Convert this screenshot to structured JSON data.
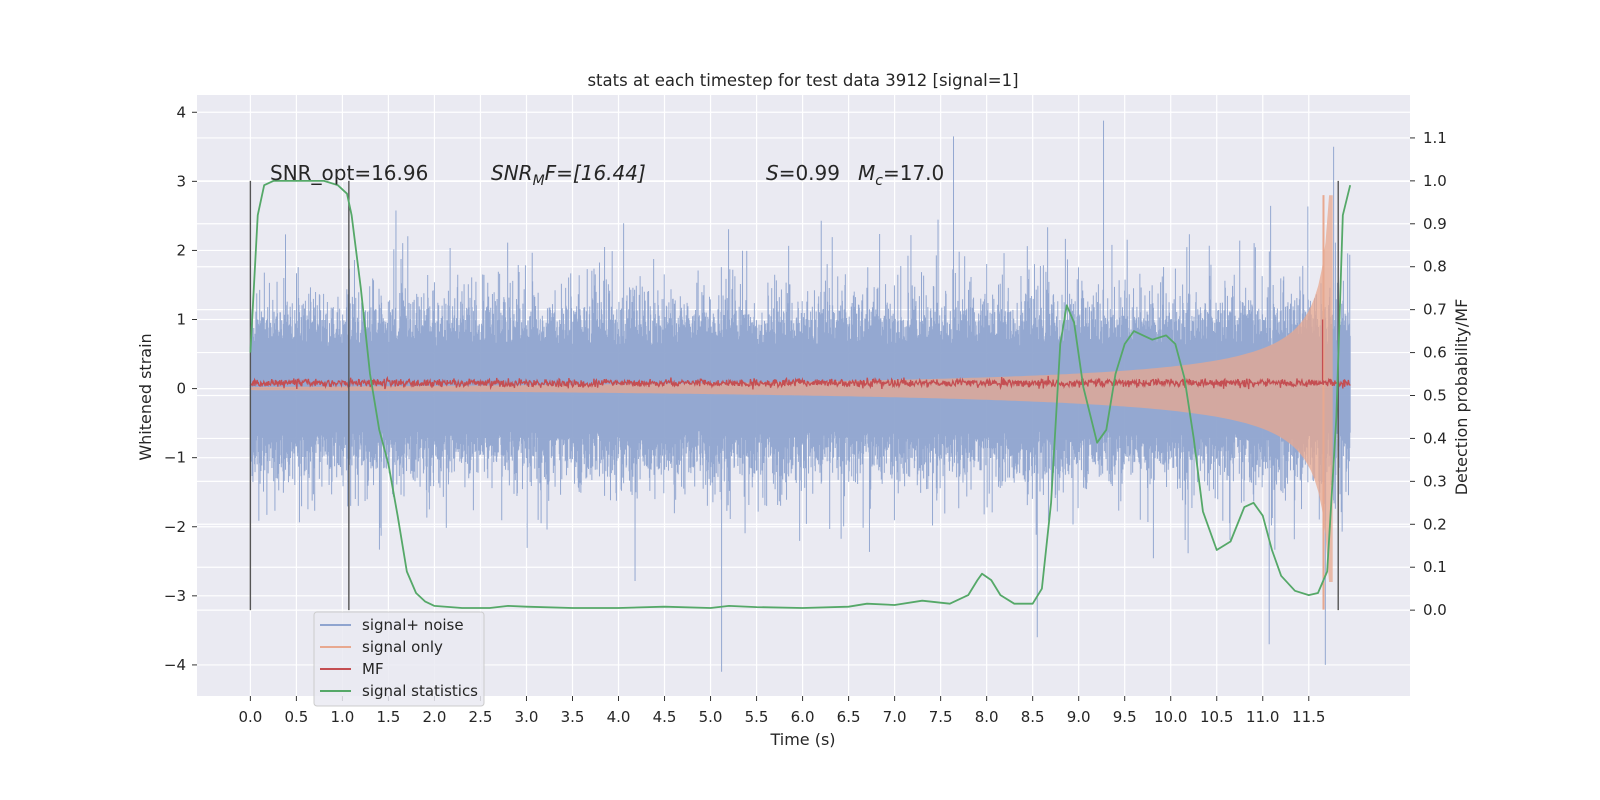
{
  "chart_data": {
    "type": "line",
    "title": "stats at each timestep for test data 3912 [signal=1]",
    "xlabel": "Time (s)",
    "ylabel": "Whitened strain",
    "ylabel_right": "Detection probability/MF",
    "xlim": [
      -0.58,
      12.6
    ],
    "ylim": [
      -4.45,
      4.25
    ],
    "ylim_right": [
      -0.2,
      1.2
    ],
    "grid": true,
    "legend_position": "lower-left",
    "x_ticks": [
      "0.0",
      "0.5",
      "1.0",
      "1.5",
      "2.0",
      "2.5",
      "3.0",
      "3.5",
      "4.0",
      "4.5",
      "5.0",
      "5.5",
      "6.0",
      "6.5",
      "7.0",
      "7.5",
      "8.0",
      "8.5",
      "9.0",
      "9.5",
      "10.0",
      "10.5",
      "11.0",
      "11.5"
    ],
    "y_ticks": [
      "4",
      "3",
      "2",
      "1",
      "0",
      "−1",
      "−2",
      "−3",
      "−4"
    ],
    "y_tick_values": [
      4,
      3,
      2,
      1,
      0,
      -1,
      -2,
      -3,
      -4
    ],
    "y_right_ticks": [
      "1.1",
      "1.0",
      "0.9",
      "0.8",
      "0.7",
      "0.6",
      "0.5",
      "0.4",
      "0.3",
      "0.2",
      "0.1",
      "0.0"
    ],
    "y_right_tick_values": [
      1.1,
      1.0,
      0.9,
      0.8,
      0.7,
      0.6,
      0.5,
      0.4,
      0.3,
      0.2,
      0.1,
      0.0
    ],
    "annotations": {
      "snr_opt": "SNR_opt=16.96",
      "snr_mf_label": "SNR",
      "snr_mf_sub": "M",
      "snr_mf_value": "F=[16.44]",
      "s_label": "S",
      "s_value": "=0.99",
      "mc_label": "M",
      "mc_sub": "c",
      "mc_value": "=17.0"
    },
    "vertical_markers": [
      0.0,
      1.07,
      11.82
    ],
    "series": [
      {
        "name": "signal+ noise",
        "color": "#8fa4cf",
        "axis": "left",
        "t_range": [
          0.0,
          11.95
        ],
        "typical_amplitude": 1.1,
        "peak_max": 3.88,
        "peak_min": -4.1
      },
      {
        "name": "signal only",
        "color": "#e8a88f",
        "axis": "left",
        "t_range": [
          0.0,
          11.78
        ],
        "envelope_start": 0.02,
        "envelope_end": 2.8
      },
      {
        "name": "MF",
        "color": "#c44e52",
        "axis": "left",
        "t_range": [
          0.0,
          11.95
        ],
        "mean": 0.08,
        "typical_amplitude": 0.07,
        "spike": [
          11.65,
          1.0
        ]
      },
      {
        "name": "signal statistics",
        "color": "#55a868",
        "axis": "right",
        "points": [
          [
            0.0,
            0.6
          ],
          [
            0.05,
            0.8
          ],
          [
            0.08,
            0.92
          ],
          [
            0.15,
            0.99
          ],
          [
            0.25,
            1.0
          ],
          [
            0.5,
            1.0
          ],
          [
            0.8,
            1.0
          ],
          [
            0.95,
            0.99
          ],
          [
            1.05,
            0.97
          ],
          [
            1.1,
            0.92
          ],
          [
            1.2,
            0.75
          ],
          [
            1.3,
            0.55
          ],
          [
            1.4,
            0.42
          ],
          [
            1.5,
            0.34
          ],
          [
            1.6,
            0.22
          ],
          [
            1.7,
            0.09
          ],
          [
            1.8,
            0.04
          ],
          [
            1.9,
            0.02
          ],
          [
            2.0,
            0.01
          ],
          [
            2.3,
            0.005
          ],
          [
            2.6,
            0.005
          ],
          [
            2.8,
            0.01
          ],
          [
            3.0,
            0.008
          ],
          [
            3.5,
            0.005
          ],
          [
            4.0,
            0.005
          ],
          [
            4.5,
            0.008
          ],
          [
            5.0,
            0.005
          ],
          [
            5.2,
            0.01
          ],
          [
            5.5,
            0.007
          ],
          [
            6.0,
            0.005
          ],
          [
            6.5,
            0.008
          ],
          [
            6.7,
            0.015
          ],
          [
            7.0,
            0.012
          ],
          [
            7.3,
            0.022
          ],
          [
            7.6,
            0.015
          ],
          [
            7.8,
            0.035
          ],
          [
            7.9,
            0.07
          ],
          [
            7.95,
            0.085
          ],
          [
            8.05,
            0.07
          ],
          [
            8.15,
            0.035
          ],
          [
            8.3,
            0.015
          ],
          [
            8.5,
            0.015
          ],
          [
            8.6,
            0.05
          ],
          [
            8.7,
            0.25
          ],
          [
            8.8,
            0.62
          ],
          [
            8.87,
            0.71
          ],
          [
            8.95,
            0.67
          ],
          [
            9.05,
            0.52
          ],
          [
            9.2,
            0.39
          ],
          [
            9.3,
            0.42
          ],
          [
            9.4,
            0.55
          ],
          [
            9.5,
            0.62
          ],
          [
            9.6,
            0.65
          ],
          [
            9.7,
            0.64
          ],
          [
            9.8,
            0.63
          ],
          [
            9.95,
            0.64
          ],
          [
            10.05,
            0.62
          ],
          [
            10.15,
            0.54
          ],
          [
            10.25,
            0.4
          ],
          [
            10.35,
            0.23
          ],
          [
            10.5,
            0.14
          ],
          [
            10.65,
            0.16
          ],
          [
            10.8,
            0.24
          ],
          [
            10.9,
            0.25
          ],
          [
            11.0,
            0.22
          ],
          [
            11.1,
            0.14
          ],
          [
            11.2,
            0.08
          ],
          [
            11.35,
            0.045
          ],
          [
            11.5,
            0.035
          ],
          [
            11.6,
            0.04
          ],
          [
            11.7,
            0.09
          ],
          [
            11.8,
            0.45
          ],
          [
            11.87,
            0.92
          ],
          [
            11.95,
            0.99
          ]
        ]
      }
    ]
  }
}
